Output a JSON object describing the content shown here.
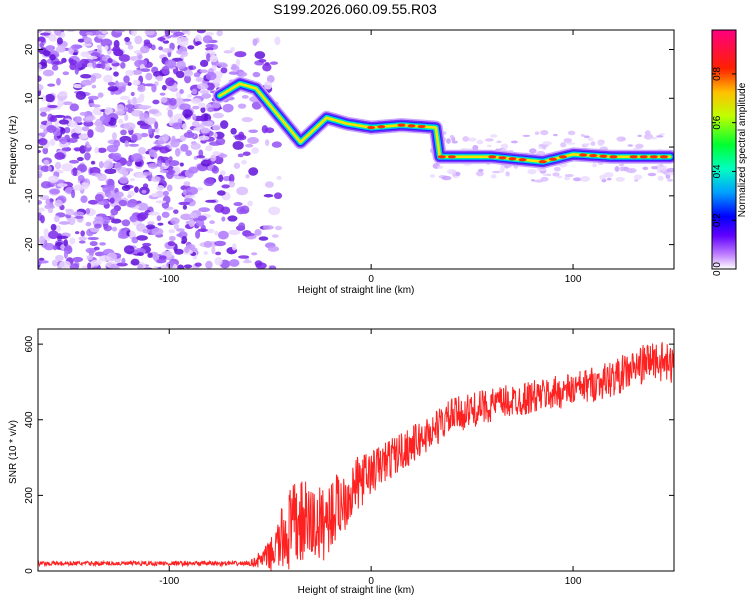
{
  "page_title": "S199.2026.060.09.55.R03",
  "chart_data": [
    {
      "type": "heatmap",
      "xlabel": "Height of straight line (km)",
      "ylabel": "Frequency (Hz)",
      "xlim": [
        -165,
        150
      ],
      "ylim": [
        -25,
        24
      ],
      "x_ticks": [
        -100,
        0,
        100
      ],
      "x_tick_labels": [
        "-100",
        "0",
        "100"
      ],
      "y_ticks": [
        20,
        10,
        0,
        -10,
        -20
      ],
      "y_tick_labels": [
        "20",
        "10",
        "0",
        "-10",
        "-20"
      ],
      "colorbar": {
        "label": "Normalized spectral amplitude",
        "range": [
          0,
          0.98
        ],
        "ticks": [
          0.0,
          0.2,
          0.4,
          0.6,
          0.8
        ],
        "tick_labels": [
          "0.0",
          "0.2",
          "0.4",
          "0.6",
          "0.8"
        ],
        "colors": [
          "#ffffff",
          "#8000ff",
          "#0000ff",
          "#00c8ff",
          "#00ff64",
          "#ffff00",
          "#ff8000",
          "#ff0000",
          "#ff0080"
        ]
      },
      "ridge": [
        {
          "x": -75,
          "y": 10.5
        },
        {
          "x": -65,
          "y": 13
        },
        {
          "x": -57,
          "y": 12
        },
        {
          "x": -45,
          "y": 6
        },
        {
          "x": -35,
          "y": 1
        },
        {
          "x": -22,
          "y": 6
        },
        {
          "x": -12,
          "y": 4.8
        },
        {
          "x": 0,
          "y": 4
        },
        {
          "x": 15,
          "y": 4.5
        },
        {
          "x": 32,
          "y": 4
        },
        {
          "x": 34,
          "y": -2
        },
        {
          "x": 60,
          "y": -2
        },
        {
          "x": 85,
          "y": -3
        },
        {
          "x": 100,
          "y": -1.5
        },
        {
          "x": 120,
          "y": -2
        },
        {
          "x": 148,
          "y": -2
        }
      ]
    },
    {
      "type": "line",
      "xlabel": "Height of straight line (km)",
      "ylabel": "SNR (10 * v/v)",
      "xlim": [
        -165,
        150
      ],
      "ylim": [
        0,
        640
      ],
      "x_ticks": [
        -100,
        0,
        100
      ],
      "x_tick_labels": [
        "-100",
        "0",
        "100"
      ],
      "y_ticks": [
        0,
        200,
        400,
        600
      ],
      "y_tick_labels": [
        "0",
        "200",
        "400",
        "600"
      ],
      "color": "#ff2020",
      "trend": [
        {
          "x": -165,
          "y": 20
        },
        {
          "x": -60,
          "y": 20
        },
        {
          "x": -50,
          "y": 40
        },
        {
          "x": -42,
          "y": 100
        },
        {
          "x": -35,
          "y": 130
        },
        {
          "x": -25,
          "y": 120
        },
        {
          "x": -15,
          "y": 180
        },
        {
          "x": -5,
          "y": 240
        },
        {
          "x": 10,
          "y": 300
        },
        {
          "x": 25,
          "y": 350
        },
        {
          "x": 40,
          "y": 410
        },
        {
          "x": 60,
          "y": 440
        },
        {
          "x": 80,
          "y": 460
        },
        {
          "x": 100,
          "y": 480
        },
        {
          "x": 120,
          "y": 510
        },
        {
          "x": 140,
          "y": 560
        },
        {
          "x": 150,
          "y": 540
        }
      ],
      "noise": [
        {
          "x": -165,
          "a": 6
        },
        {
          "x": -60,
          "a": 6
        },
        {
          "x": -50,
          "a": 40
        },
        {
          "x": -40,
          "a": 120
        },
        {
          "x": -30,
          "a": 110
        },
        {
          "x": -15,
          "a": 90
        },
        {
          "x": 0,
          "a": 60
        },
        {
          "x": 20,
          "a": 50
        },
        {
          "x": 60,
          "a": 45
        },
        {
          "x": 100,
          "a": 45
        },
        {
          "x": 150,
          "a": 55
        }
      ]
    }
  ]
}
